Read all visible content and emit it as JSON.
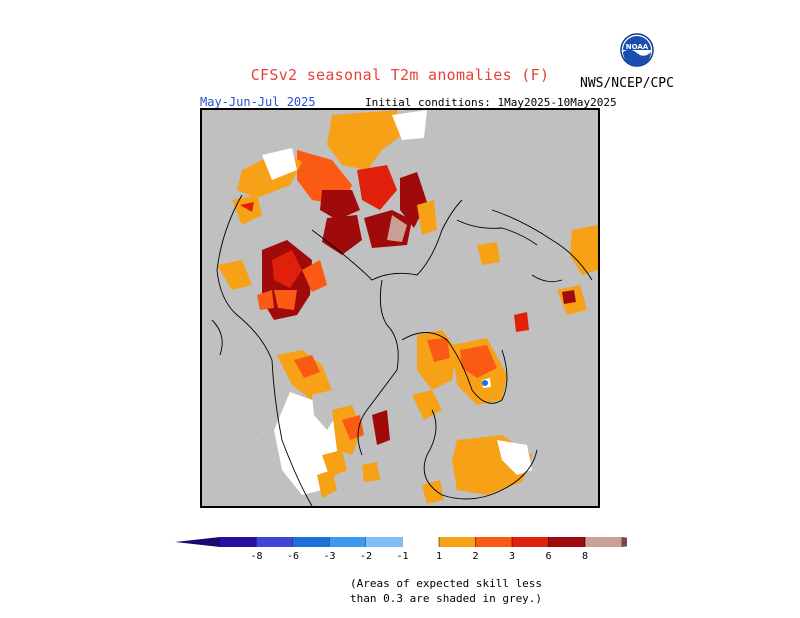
{
  "header": {
    "title": "CFSv2 seasonal T2m anomalies (F)",
    "agency": "NWS/NCEP/CPC",
    "logo_text": "NOAA",
    "season": "May-Jun-Jul 2025",
    "initial_conditions": "Initial conditions: 1May2025-10May2025"
  },
  "legend": {
    "items": [
      {
        "label": "-8",
        "color": "#2a0fa0"
      },
      {
        "label": "-6",
        "color": "#3e45d8"
      },
      {
        "label": "-3",
        "color": "#1f6fd8"
      },
      {
        "label": "-2",
        "color": "#3b9af0"
      },
      {
        "label": "-1",
        "color": "#7fbff8"
      },
      {
        "label": "",
        "color": "#ffffff"
      },
      {
        "label": "1",
        "color": "#f7a116"
      },
      {
        "label": "2",
        "color": "#fa5a14"
      },
      {
        "label": "3",
        "color": "#e0200b"
      },
      {
        "label": "6",
        "color": "#a00a0a"
      },
      {
        "label": "8",
        "color": "#c8a096"
      }
    ],
    "low_arrow_color": "#1a0a70",
    "high_arrow_color": "#7a4a40"
  },
  "note": {
    "line1": "(Areas of expected skill less",
    "line2": "than 0.3 are shaded in grey.)"
  },
  "map": {
    "background": "#c0c0c0",
    "projection": "north-polar-stereographic"
  }
}
